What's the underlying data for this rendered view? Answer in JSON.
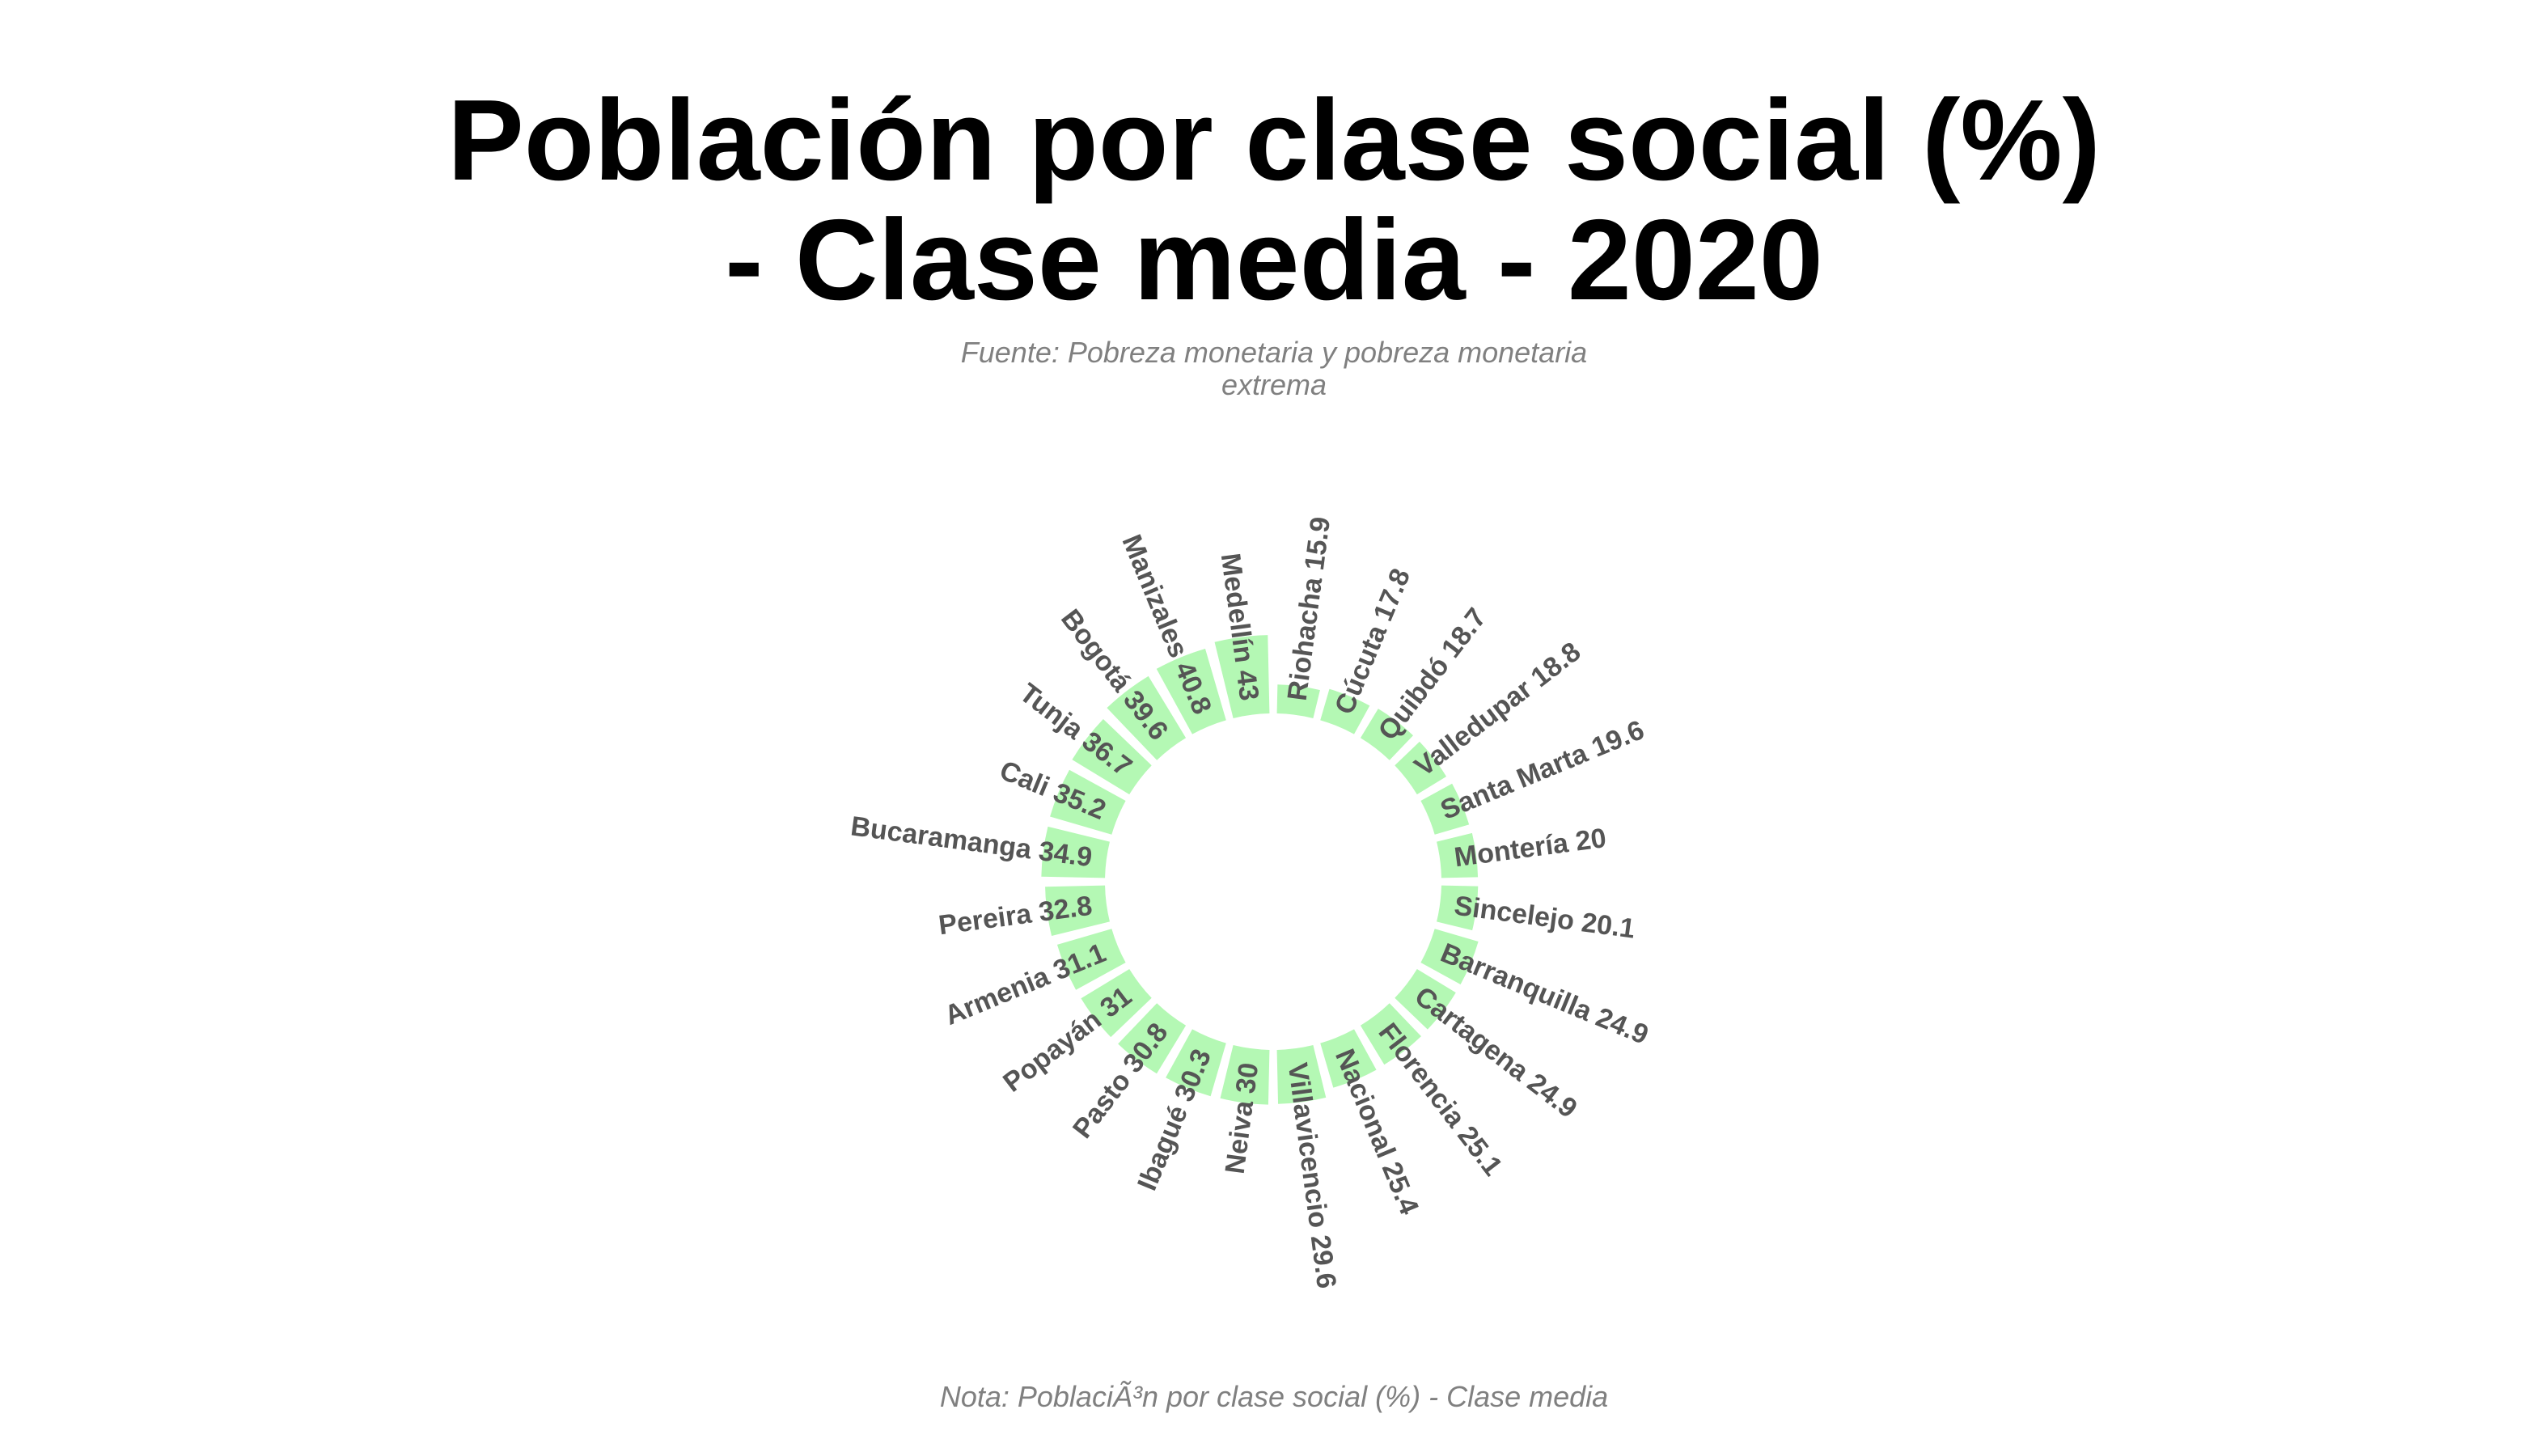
{
  "chart_data": {
    "type": "bar",
    "polar": true,
    "title": "Población por clase social (%) - Clase media - 2020",
    "subtitle": "Fuente: Pobreza monetaria y pobreza monetaria extrema",
    "caption": "Nota: PoblaciÃ³n por clase social (%) - Clase media",
    "bar_color": "#b4f8b4",
    "categories": [
      "Riohacha",
      "Cúcuta",
      "Quibdó",
      "Valledupar",
      "Santa Marta",
      "Montería",
      "Sincelejo",
      "Barranquilla",
      "Cartagena",
      "Florencia",
      "Nacional",
      "Villavicencio",
      "Neiva",
      "Ibagué",
      "Pasto",
      "Popayán",
      "Armenia",
      "Pereira",
      "Bucaramanga",
      "Cali",
      "Tunja",
      "Bogotá",
      "Manizales",
      "Medellín"
    ],
    "values": [
      15.9,
      17.8,
      18.7,
      18.8,
      19.6,
      20,
      20.1,
      24.9,
      24.9,
      25.1,
      25.4,
      29.6,
      30,
      30.3,
      30.8,
      31,
      31.1,
      32.8,
      34.9,
      35.2,
      36.7,
      39.6,
      40.8,
      43
    ],
    "labels": [
      "Riohacha 15.9",
      "Cúcuta 17.8",
      "Quibdó 18.7",
      "Valledupar 18.8",
      "Santa Marta 19.6",
      "Montería 20",
      "Sincelejo 20.1",
      "Barranquilla 24.9",
      "Cartagena 24.9",
      "Florencia 25.1",
      "Nacional 25.4",
      "Villavicencio 29.6",
      "Neiva 30",
      "Ibagué 30.3",
      "Pasto 30.8",
      "Popayán 31",
      "Armenia 31.1",
      "Pereira 32.8",
      "Bucaramanga 34.9",
      "Cali 35.2",
      "Tunja 36.7",
      "Bogotá 39.6",
      "Manizales 40.8",
      "Medellín 43"
    ]
  }
}
